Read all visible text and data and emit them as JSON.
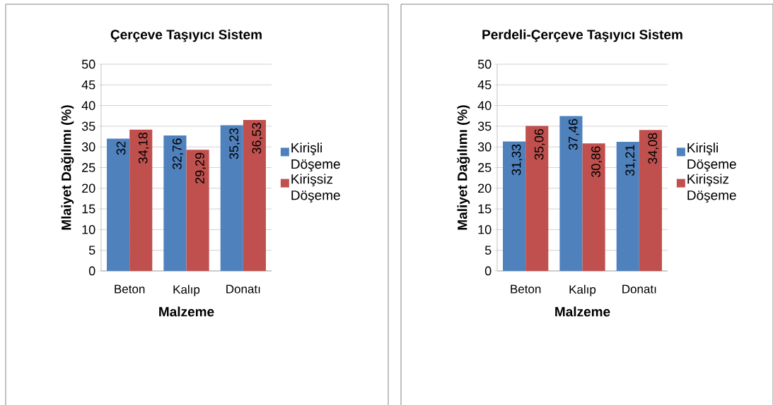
{
  "chart_data": [
    {
      "type": "bar",
      "title": "Çerçeve Taşıyıcı Sistem",
      "xlabel": "Malzeme",
      "ylabel": "Mlaiyet Dağılımı (%)",
      "categories": [
        "Beton",
        "Kalıp",
        "Donatı"
      ],
      "ylim": [
        0,
        50
      ],
      "yticks": [
        0,
        5,
        10,
        15,
        20,
        25,
        30,
        35,
        40,
        45,
        50
      ],
      "grid": "y",
      "legend": "right",
      "series": [
        {
          "name": "Kirişli Döşeme",
          "color": "#4f81bd",
          "values": [
            32,
            32.76,
            35.23
          ],
          "value_labels": [
            "32",
            "32,76",
            "35,23"
          ]
        },
        {
          "name": "Kirişsiz Döşeme",
          "color": "#c0504d",
          "values": [
            34.18,
            29.29,
            36.53
          ],
          "value_labels": [
            "34,18",
            "29,29",
            "36,53"
          ]
        }
      ]
    },
    {
      "type": "bar",
      "title": "Perdeli-Çerçeve Taşıyıcı Sistem",
      "xlabel": "Malzeme",
      "ylabel": "Maliyet Dağılımı (%)",
      "categories": [
        "Beton",
        "Kalıp",
        "Donatı"
      ],
      "ylim": [
        0,
        50
      ],
      "yticks": [
        0,
        5,
        10,
        15,
        20,
        25,
        30,
        35,
        40,
        45,
        50
      ],
      "grid": "y",
      "legend": "right",
      "series": [
        {
          "name": "Kirişli Döşeme",
          "color": "#4f81bd",
          "values": [
            31.33,
            37.46,
            31.21
          ],
          "value_labels": [
            "31,33",
            "37,46",
            "31,21"
          ]
        },
        {
          "name": "Kirişsiz Döşeme",
          "color": "#c0504d",
          "values": [
            35.06,
            30.86,
            34.08
          ],
          "value_labels": [
            "35,06",
            "30,86",
            "34,08"
          ]
        }
      ]
    }
  ]
}
